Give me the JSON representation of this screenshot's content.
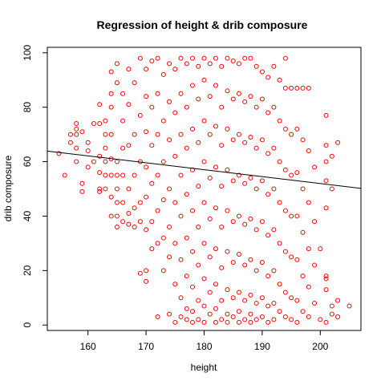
{
  "chart_data": {
    "type": "scatter",
    "title": "Regression of height & drib composure",
    "xlabel": "height",
    "ylabel": "drib composure",
    "xlim": [
      153.0,
      207.0
    ],
    "ylim": [
      -2,
      102
    ],
    "xticks": [
      160,
      170,
      180,
      190,
      200
    ],
    "yticks": [
      0,
      20,
      40,
      60,
      80,
      100
    ],
    "grid": false,
    "point_color": "#ff0000",
    "line_color": "#000000",
    "regression_line": {
      "x": [
        153.0,
        207.0
      ],
      "y": [
        63.9,
        50.2
      ]
    },
    "series": [
      {
        "points": [
          [
            155,
            63
          ],
          [
            156,
            55
          ],
          [
            157,
            70
          ],
          [
            157,
            67
          ],
          [
            158,
            74
          ],
          [
            158,
            72
          ],
          [
            158,
            70
          ],
          [
            158,
            65
          ],
          [
            158,
            60
          ],
          [
            159,
            71
          ],
          [
            159,
            52
          ],
          [
            159,
            49
          ],
          [
            160,
            67
          ],
          [
            160,
            64
          ],
          [
            160,
            58
          ],
          [
            161,
            74
          ],
          [
            161,
            60
          ],
          [
            162,
            81
          ],
          [
            162,
            74
          ],
          [
            162,
            62
          ],
          [
            162,
            56
          ],
          [
            162,
            50
          ],
          [
            162,
            49
          ],
          [
            163,
            75
          ],
          [
            163,
            70
          ],
          [
            163,
            65
          ],
          [
            163,
            60
          ],
          [
            163,
            55
          ],
          [
            163,
            50
          ],
          [
            164,
            93
          ],
          [
            164,
            85
          ],
          [
            164,
            80
          ],
          [
            164,
            70
          ],
          [
            164,
            61
          ],
          [
            164,
            55
          ],
          [
            164,
            47
          ],
          [
            164,
            40
          ],
          [
            165,
            96
          ],
          [
            165,
            89
          ],
          [
            165,
            60
          ],
          [
            165,
            55
          ],
          [
            165,
            50
          ],
          [
            165,
            45
          ],
          [
            165,
            40
          ],
          [
            165,
            36
          ],
          [
            166,
            85
          ],
          [
            166,
            75
          ],
          [
            166,
            65
          ],
          [
            166,
            55
          ],
          [
            166,
            45
          ],
          [
            166,
            38
          ],
          [
            167,
            94
          ],
          [
            167,
            81
          ],
          [
            167,
            66
          ],
          [
            167,
            50
          ],
          [
            167,
            41
          ],
          [
            167,
            37
          ],
          [
            168,
            89
          ],
          [
            168,
            70
          ],
          [
            168,
            55
          ],
          [
            168,
            43
          ],
          [
            168,
            36
          ],
          [
            169,
            98
          ],
          [
            169,
            77
          ],
          [
            169,
            60
          ],
          [
            169,
            45
          ],
          [
            169,
            38
          ],
          [
            169,
            19
          ],
          [
            170,
            94
          ],
          [
            170,
            84
          ],
          [
            170,
            71
          ],
          [
            170,
            58
          ],
          [
            170,
            47
          ],
          [
            170,
            35
          ],
          [
            170,
            20
          ],
          [
            170,
            16
          ],
          [
            171,
            97
          ],
          [
            171,
            80
          ],
          [
            171,
            66
          ],
          [
            171,
            52
          ],
          [
            171,
            38
          ],
          [
            171,
            28
          ],
          [
            172,
            98
          ],
          [
            172,
            85
          ],
          [
            172,
            70
          ],
          [
            172,
            55
          ],
          [
            172,
            42
          ],
          [
            172,
            30
          ],
          [
            172,
            3
          ],
          [
            173,
            92
          ],
          [
            173,
            75
          ],
          [
            173,
            60
          ],
          [
            173,
            46
          ],
          [
            173,
            32
          ],
          [
            173,
            20
          ],
          [
            174,
            96
          ],
          [
            174,
            82
          ],
          [
            174,
            68
          ],
          [
            174,
            50
          ],
          [
            174,
            36
          ],
          [
            174,
            25
          ],
          [
            174,
            4
          ],
          [
            175,
            94
          ],
          [
            175,
            78
          ],
          [
            175,
            62
          ],
          [
            175,
            45
          ],
          [
            175,
            30
          ],
          [
            175,
            15
          ],
          [
            175,
            1
          ],
          [
            176,
            98
          ],
          [
            176,
            85
          ],
          [
            176,
            70
          ],
          [
            176,
            55
          ],
          [
            176,
            40
          ],
          [
            176,
            24
          ],
          [
            176,
            10
          ],
          [
            176,
            3
          ],
          [
            177,
            96
          ],
          [
            177,
            80
          ],
          [
            177,
            65
          ],
          [
            177,
            48
          ],
          [
            177,
            32
          ],
          [
            177,
            18
          ],
          [
            177,
            6
          ],
          [
            177,
            2
          ],
          [
            178,
            98
          ],
          [
            178,
            88
          ],
          [
            178,
            72
          ],
          [
            178,
            57
          ],
          [
            178,
            42
          ],
          [
            178,
            27
          ],
          [
            178,
            14
          ],
          [
            178,
            5
          ],
          [
            178,
            1
          ],
          [
            179,
            95
          ],
          [
            179,
            83
          ],
          [
            179,
            67
          ],
          [
            179,
            51
          ],
          [
            179,
            36
          ],
          [
            179,
            22
          ],
          [
            179,
            9
          ],
          [
            179,
            2
          ],
          [
            180,
            98
          ],
          [
            180,
            90
          ],
          [
            180,
            75
          ],
          [
            180,
            60
          ],
          [
            180,
            45
          ],
          [
            180,
            30
          ],
          [
            180,
            17
          ],
          [
            180,
            7
          ],
          [
            180,
            1
          ],
          [
            181,
            96
          ],
          [
            181,
            84
          ],
          [
            181,
            70
          ],
          [
            181,
            54
          ],
          [
            181,
            39
          ],
          [
            181,
            25
          ],
          [
            181,
            12
          ],
          [
            181,
            4
          ],
          [
            182,
            98
          ],
          [
            182,
            88
          ],
          [
            182,
            73
          ],
          [
            182,
            58
          ],
          [
            182,
            43
          ],
          [
            182,
            28
          ],
          [
            182,
            15
          ],
          [
            182,
            6
          ],
          [
            182,
            1
          ],
          [
            183,
            95
          ],
          [
            183,
            80
          ],
          [
            183,
            66
          ],
          [
            183,
            51
          ],
          [
            183,
            36
          ],
          [
            183,
            21
          ],
          [
            183,
            9
          ],
          [
            183,
            2
          ],
          [
            184,
            98
          ],
          [
            184,
            86
          ],
          [
            184,
            72
          ],
          [
            184,
            57
          ],
          [
            184,
            42
          ],
          [
            184,
            27
          ],
          [
            184,
            13
          ],
          [
            184,
            4
          ],
          [
            184,
            1
          ],
          [
            185,
            97
          ],
          [
            185,
            83
          ],
          [
            185,
            68
          ],
          [
            185,
            53
          ],
          [
            185,
            38
          ],
          [
            185,
            23
          ],
          [
            185,
            10
          ],
          [
            185,
            3
          ],
          [
            186,
            96
          ],
          [
            186,
            85
          ],
          [
            186,
            70
          ],
          [
            186,
            55
          ],
          [
            186,
            40
          ],
          [
            186,
            26
          ],
          [
            186,
            12
          ],
          [
            186,
            5
          ],
          [
            186,
            1
          ],
          [
            187,
            98
          ],
          [
            187,
            82
          ],
          [
            187,
            67
          ],
          [
            187,
            52
          ],
          [
            187,
            37
          ],
          [
            187,
            22
          ],
          [
            187,
            9
          ],
          [
            187,
            2
          ],
          [
            188,
            98
          ],
          [
            188,
            84
          ],
          [
            188,
            69
          ],
          [
            188,
            54
          ],
          [
            188,
            39
          ],
          [
            188,
            24
          ],
          [
            188,
            11
          ],
          [
            188,
            4
          ],
          [
            188,
            1
          ],
          [
            189,
            95
          ],
          [
            189,
            80
          ],
          [
            189,
            65
          ],
          [
            189,
            50
          ],
          [
            189,
            35
          ],
          [
            189,
            20
          ],
          [
            189,
            8
          ],
          [
            189,
            2
          ],
          [
            190,
            93
          ],
          [
            190,
            83
          ],
          [
            190,
            68
          ],
          [
            190,
            53
          ],
          [
            190,
            38
          ],
          [
            190,
            23
          ],
          [
            190,
            10
          ],
          [
            190,
            3
          ],
          [
            191,
            91
          ],
          [
            191,
            78
          ],
          [
            191,
            63
          ],
          [
            191,
            48
          ],
          [
            191,
            33
          ],
          [
            191,
            18
          ],
          [
            191,
            7
          ],
          [
            191,
            1
          ],
          [
            192,
            95
          ],
          [
            192,
            80
          ],
          [
            192,
            65
          ],
          [
            192,
            50
          ],
          [
            192,
            35
          ],
          [
            192,
            20
          ],
          [
            192,
            8
          ],
          [
            192,
            2
          ],
          [
            193,
            90
          ],
          [
            193,
            75
          ],
          [
            193,
            60
          ],
          [
            193,
            45
          ],
          [
            193,
            30
          ],
          [
            193,
            15
          ],
          [
            193,
            5
          ],
          [
            194,
            98
          ],
          [
            194,
            87
          ],
          [
            194,
            72
          ],
          [
            194,
            57
          ],
          [
            194,
            42
          ],
          [
            194,
            27
          ],
          [
            194,
            12
          ],
          [
            194,
            3
          ],
          [
            195,
            87
          ],
          [
            195,
            70
          ],
          [
            195,
            55
          ],
          [
            195,
            40
          ],
          [
            195,
            25
          ],
          [
            195,
            10
          ],
          [
            195,
            2
          ],
          [
            196,
            87
          ],
          [
            196,
            72
          ],
          [
            196,
            56
          ],
          [
            196,
            40
          ],
          [
            196,
            24
          ],
          [
            196,
            9
          ],
          [
            196,
            1
          ],
          [
            197,
            87
          ],
          [
            197,
            68
          ],
          [
            197,
            50
          ],
          [
            197,
            34
          ],
          [
            197,
            18
          ],
          [
            197,
            5
          ],
          [
            198,
            87
          ],
          [
            198,
            64
          ],
          [
            198,
            45
          ],
          [
            198,
            28
          ],
          [
            198,
            14
          ],
          [
            198,
            3
          ],
          [
            199,
            58
          ],
          [
            199,
            38
          ],
          [
            199,
            22
          ],
          [
            199,
            8
          ],
          [
            200,
            28
          ],
          [
            200,
            2
          ],
          [
            201,
            77
          ],
          [
            201,
            66
          ],
          [
            201,
            60
          ],
          [
            201,
            53
          ],
          [
            201,
            43
          ],
          [
            201,
            18
          ],
          [
            201,
            17
          ],
          [
            201,
            13
          ],
          [
            201,
            1
          ],
          [
            202,
            62
          ],
          [
            202,
            50
          ],
          [
            202,
            7
          ],
          [
            202,
            4
          ],
          [
            203,
            67
          ],
          [
            203,
            9
          ],
          [
            203,
            3
          ],
          [
            205,
            7
          ]
        ]
      }
    ]
  }
}
